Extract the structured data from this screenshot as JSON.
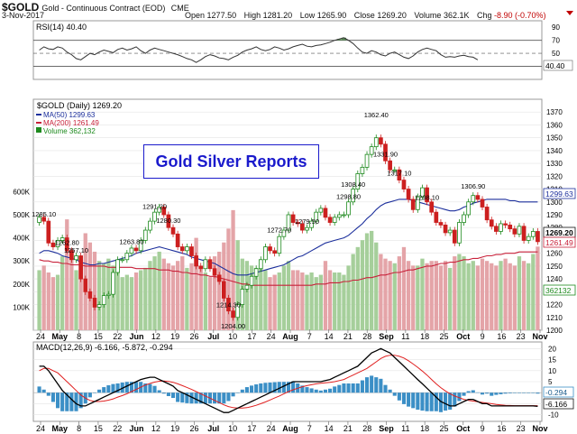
{
  "header": {
    "symbol": "$GOLD",
    "description": "Gold - Continuous Contract (EOD)",
    "exchange": "CME",
    "date": "3-Nov-2017",
    "open_label": "Open",
    "open": "1277.50",
    "high_label": "High",
    "high": "1281.20",
    "low_label": "Low",
    "low": "1265.90",
    "close_label": "Close",
    "close": "1269.20",
    "volume_label": "Volume",
    "volume": "362.1K",
    "chg_label": "Chg",
    "chg": "-8.90 (-0.70%)",
    "chg_arrow": "▼"
  },
  "banner": "Gold Silver Reports",
  "colors": {
    "up": "#1e8a1e",
    "down": "#cc1f1f",
    "ma50": "#1c2f9c",
    "ma200": "#c8213a",
    "volume_up": "#a6cf9b",
    "volume_down": "#e4a4a8",
    "macd_line": "#000000",
    "signal_line": "#e02020",
    "histogram": "#3b8fc6",
    "rsi_line": "#333333"
  },
  "chart_data": [
    {
      "type": "line",
      "panel": "rsi",
      "label": "RSI(14) 40.40",
      "current_value_label": "40.40",
      "ylim": [
        0,
        100
      ],
      "yticks": [
        30,
        50,
        70,
        90
      ],
      "reference_lines": [
        30,
        50,
        70
      ],
      "values": [
        55,
        60,
        57,
        56,
        60,
        58,
        52,
        48,
        42,
        40,
        45,
        50,
        48,
        52,
        55,
        53,
        51,
        56,
        58,
        55,
        57,
        60,
        54,
        50,
        55,
        58,
        56,
        54,
        52,
        50,
        48,
        45,
        42,
        40,
        36,
        40,
        45,
        48,
        46,
        43,
        42,
        40,
        44,
        47,
        52,
        55,
        57,
        60,
        56,
        54,
        56,
        60,
        58,
        55,
        57,
        60,
        62,
        64,
        61,
        60,
        62,
        63,
        65,
        67,
        70,
        72,
        74,
        70,
        65,
        58,
        52,
        50,
        54,
        52,
        48,
        46,
        50,
        52,
        48,
        44,
        42,
        46,
        52,
        56,
        58,
        56,
        54,
        48,
        44,
        45,
        44,
        46,
        47,
        45,
        44,
        40
      ]
    },
    {
      "type": "candlestick",
      "panel": "price",
      "label": "$GOLD (Daily) 1269.20",
      "ylim": [
        1200,
        1380
      ],
      "yticks": [
        1200,
        1210,
        1220,
        1230,
        1240,
        1250,
        1260,
        1270,
        1280,
        1290,
        1300,
        1310,
        1320,
        1330,
        1340,
        1350,
        1360,
        1370
      ],
      "x_ticks": [
        "24",
        "May",
        "8",
        "15",
        "22",
        "Jun",
        "12",
        "19",
        "26",
        "Jul",
        "10",
        "17",
        "24",
        "Aug",
        "7",
        "14",
        "21",
        "28",
        "Sep",
        "11",
        "18",
        "25",
        "Oct",
        "9",
        "16",
        "23",
        "Nov"
      ],
      "closes": [
        1288,
        1285,
        1268,
        1265,
        1270,
        1272,
        1262,
        1255,
        1258,
        1240,
        1230,
        1225,
        1218,
        1220,
        1227,
        1228,
        1245,
        1255,
        1255,
        1260,
        1264,
        1262,
        1270,
        1278,
        1285,
        1292,
        1296,
        1290,
        1280,
        1275,
        1265,
        1262,
        1265,
        1258,
        1250,
        1248,
        1255,
        1248,
        1243,
        1238,
        1225,
        1215,
        1210,
        1220,
        1232,
        1235,
        1242,
        1248,
        1255,
        1265,
        1262,
        1260,
        1273,
        1278,
        1290,
        1284,
        1283,
        1278,
        1280,
        1285,
        1292,
        1295,
        1288,
        1284,
        1288,
        1290,
        1290,
        1300,
        1310,
        1322,
        1327,
        1337,
        1343,
        1350,
        1345,
        1332,
        1325,
        1325,
        1317,
        1310,
        1302,
        1294,
        1304,
        1311,
        1300,
        1292,
        1284,
        1282,
        1276,
        1278,
        1268,
        1284,
        1290,
        1300,
        1305,
        1302,
        1296,
        1286,
        1281,
        1277,
        1283,
        1282,
        1279,
        1275,
        1281,
        1270,
        1273,
        1277,
        1269
      ],
      "series": [
        {
          "name": "MA(50) 1299.63",
          "current_value_label": "1299.63"
        },
        {
          "name": "MA(200) 1261.49",
          "current_value_label": "1261.49"
        },
        {
          "name": "Volume 362,132",
          "current_value_label": "362132"
        }
      ],
      "ma50": [
        1260,
        1262,
        1262,
        1261,
        1260,
        1258,
        1257,
        1256,
        1255,
        1253,
        1252,
        1251,
        1251,
        1252,
        1252,
        1253,
        1254,
        1255,
        1256,
        1257,
        1258,
        1260,
        1261,
        1262,
        1263,
        1264,
        1265,
        1264,
        1263,
        1262,
        1261,
        1260,
        1259,
        1257,
        1256,
        1255,
        1254,
        1253,
        1252,
        1250,
        1248,
        1246,
        1244,
        1243,
        1243,
        1243,
        1244,
        1245,
        1246,
        1247,
        1248,
        1249,
        1250,
        1251,
        1253,
        1255,
        1257,
        1258,
        1260,
        1262,
        1264,
        1266,
        1268,
        1269,
        1270,
        1271,
        1272,
        1274,
        1277,
        1280,
        1283,
        1287,
        1290,
        1294,
        1297,
        1299,
        1300,
        1301,
        1302,
        1302,
        1302,
        1301,
        1300,
        1299,
        1298,
        1297,
        1296,
        1295,
        1294,
        1293,
        1293,
        1294,
        1296,
        1297,
        1299,
        1300,
        1301,
        1302,
        1302,
        1302,
        1302,
        1302,
        1301,
        1301,
        1300,
        1300,
        1300,
        1300,
        1300
      ],
      "ma200": [
        1255,
        1254,
        1254,
        1253,
        1253,
        1252,
        1252,
        1251,
        1251,
        1251,
        1250,
        1250,
        1250,
        1250,
        1250,
        1249,
        1249,
        1249,
        1249,
        1249,
        1249,
        1248,
        1248,
        1248,
        1248,
        1248,
        1247,
        1247,
        1247,
        1246,
        1246,
        1245,
        1245,
        1244,
        1244,
        1243,
        1243,
        1242,
        1242,
        1241,
        1240,
        1239,
        1238,
        1237,
        1236,
        1236,
        1235,
        1235,
        1235,
        1235,
        1235,
        1235,
        1235,
        1235,
        1235,
        1235,
        1235,
        1235,
        1235,
        1235,
        1236,
        1236,
        1236,
        1237,
        1237,
        1237,
        1238,
        1238,
        1239,
        1239,
        1240,
        1241,
        1241,
        1242,
        1243,
        1243,
        1244,
        1245,
        1245,
        1246,
        1247,
        1247,
        1248,
        1249,
        1250,
        1250,
        1251,
        1252,
        1252,
        1253,
        1253,
        1254,
        1255,
        1255,
        1256,
        1256,
        1257,
        1258,
        1258,
        1259,
        1259,
        1260,
        1260,
        1260,
        1261,
        1261,
        1261,
        1261,
        1261
      ],
      "volume": {
        "ylim": [
          0,
          1000000
        ],
        "yticks": [
          100000,
          200000,
          300000,
          400000,
          500000,
          600000
        ],
        "ytick_labels": [
          "100K",
          "200K",
          "300K",
          "400K",
          "500K",
          "600K"
        ],
        "values": [
          260000,
          280000,
          250000,
          230000,
          240000,
          320000,
          480000,
          350000,
          260000,
          300000,
          420000,
          380000,
          340000,
          300000,
          290000,
          310000,
          280000,
          250000,
          230000,
          240000,
          230000,
          250000,
          260000,
          270000,
          300000,
          320000,
          340000,
          310000,
          290000,
          280000,
          300000,
          320000,
          270000,
          290000,
          400000,
          270000,
          250000,
          230000,
          320000,
          340000,
          380000,
          440000,
          520000,
          390000,
          310000,
          300000,
          280000,
          270000,
          300000,
          260000,
          230000,
          240000,
          250000,
          280000,
          300000,
          260000,
          260000,
          250000,
          240000,
          250000,
          230000,
          240000,
          300000,
          260000,
          250000,
          250000,
          240000,
          280000,
          330000,
          360000,
          390000,
          420000,
          430000,
          380000,
          330000,
          310000,
          300000,
          290000,
          320000,
          360000,
          300000,
          280000,
          280000,
          310000,
          290000,
          300000,
          300000,
          280000,
          300000,
          270000,
          320000,
          330000,
          320000,
          290000,
          300000,
          280000,
          310000,
          300000,
          290000,
          280000,
          300000,
          310000,
          290000,
          280000,
          320000,
          300000,
          290000,
          330000,
          362132
        ]
      },
      "annotations": [
        {
          "text": "1214.30",
          "near_value": 1214.3
        },
        {
          "text": "1298.80",
          "near_value": 1298.8
        },
        {
          "text": "1204.00",
          "near_value": 1204.0
        },
        {
          "text": "1280.30",
          "near_value": 1280.3
        },
        {
          "text": "1257.10",
          "near_value": 1257.1
        },
        {
          "text": "1298.10",
          "near_value": 1298.1
        },
        {
          "text": "1272.70",
          "near_value": 1272.7
        },
        {
          "text": "1306.90",
          "near_value": 1306.9
        },
        {
          "text": "1279.50",
          "near_value": 1279.5
        },
        {
          "text": "1331.90",
          "near_value": 1331.9
        },
        {
          "text": "1362.40",
          "near_value": 1362.4
        },
        {
          "text": "1317.10",
          "near_value": 1317.1
        },
        {
          "text": "1291.20",
          "near_value": 1291.2
        },
        {
          "text": "1262.80",
          "near_value": 1262.8
        },
        {
          "text": "1308.40",
          "near_value": 1308.4
        },
        {
          "text": "1263.80",
          "near_value": 1263.8
        },
        {
          "text": "1285.10",
          "near_value": 1285.1
        }
      ],
      "current_value_label": "1269.20"
    },
    {
      "type": "line",
      "panel": "macd",
      "label": "MACD(12,26,9) -6.166, -5.872, -0.294",
      "current_values": [
        "-0.294",
        "-6.166"
      ],
      "ylim": [
        -13,
        23
      ],
      "yticks": [
        -10,
        -5,
        0,
        5,
        10,
        15,
        20
      ],
      "x_ticks": [
        "24",
        "May",
        "8",
        "15",
        "22",
        "Jun",
        "12",
        "19",
        "26",
        "Jul",
        "10",
        "17",
        "24",
        "Aug",
        "7",
        "14",
        "21",
        "28",
        "Sep",
        "11",
        "18",
        "25",
        "Oct",
        "9",
        "16",
        "23",
        "Nov"
      ],
      "macd": [
        12,
        12,
        10,
        7,
        4,
        1,
        -1,
        -3,
        -5,
        -6,
        -6,
        -5,
        -4,
        -3,
        -2,
        -1,
        0,
        1,
        2,
        3,
        4,
        5,
        6,
        6.5,
        7,
        7,
        6,
        5,
        4,
        3,
        1,
        0,
        -1,
        -2,
        -3,
        -4,
        -5,
        -6,
        -7,
        -8,
        -9,
        -9,
        -8,
        -7,
        -6,
        -5,
        -4,
        -3,
        -2,
        -1,
        0,
        1,
        2,
        3,
        4,
        5,
        5,
        5,
        5,
        5,
        5,
        5,
        5.5,
        6,
        7,
        8,
        9,
        10,
        11,
        12,
        14,
        16,
        18,
        19,
        20,
        19,
        18,
        16,
        14,
        12,
        10,
        8,
        6,
        4,
        2,
        0,
        -2,
        -4,
        -5,
        -6,
        -6,
        -5,
        -4,
        -3,
        -3,
        -4,
        -5,
        -5,
        -6,
        -6,
        -6,
        -6,
        -6,
        -6,
        -6,
        -6,
        -6,
        -6,
        -6.166
      ],
      "signal": [
        10,
        11,
        11,
        10,
        9,
        7,
        5,
        3,
        1,
        -1,
        -2.5,
        -3.5,
        -4,
        -4,
        -3.8,
        -3.4,
        -2.8,
        -2,
        -1.3,
        -0.5,
        0.5,
        1.5,
        2.5,
        3.5,
        4.2,
        4.8,
        5.2,
        5.3,
        5.1,
        4.7,
        4,
        3.2,
        2.4,
        1.5,
        0.5,
        -0.5,
        -1.5,
        -2.5,
        -3.5,
        -4.5,
        -5.5,
        -6.3,
        -6.8,
        -7,
        -7,
        -6.8,
        -6.3,
        -5.7,
        -5,
        -4.2,
        -3.3,
        -2.4,
        -1.5,
        -0.5,
        0.5,
        1.3,
        2,
        2.7,
        3.2,
        3.6,
        4,
        4.3,
        4.5,
        4.7,
        5,
        5.5,
        6,
        7,
        8,
        9,
        10,
        11,
        12.5,
        14,
        15.5,
        16.5,
        17,
        17,
        16.5,
        15.7,
        14.5,
        13,
        11.5,
        9.8,
        8,
        6,
        4,
        2.3,
        0.8,
        -0.5,
        -1.5,
        -2.3,
        -3,
        -3.5,
        -3.8,
        -4.1,
        -4.4,
        -4.7,
        -5,
        -5.3,
        -5.5,
        -5.7,
        -5.8,
        -5.9,
        -5.9,
        -5.9,
        -5.9,
        -5.9,
        -5.872
      ]
    }
  ]
}
